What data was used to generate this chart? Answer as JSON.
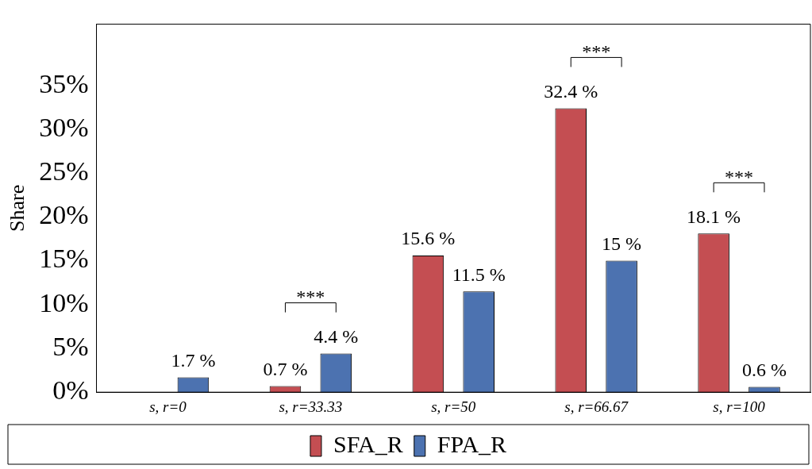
{
  "chart_data": {
    "type": "bar",
    "ylabel": "Share",
    "categories": [
      "s, r=0",
      "s, r=33.33",
      "s, r=50",
      "s, r=66.67",
      "s, r=100"
    ],
    "series": [
      {
        "name": "SFA_R",
        "color": "#c44e52",
        "values": [
          null,
          0.7,
          15.6,
          32.4,
          18.1
        ],
        "value_labels": [
          null,
          "0.7 %",
          "15.6 %",
          "32.4 %",
          "18.1 %"
        ]
      },
      {
        "name": "FPA_R",
        "color": "#4c72b0",
        "values": [
          1.7,
          4.4,
          11.5,
          15,
          0.6
        ],
        "value_labels": [
          "1.7 %",
          "4.4 %",
          "11.5 %",
          "15 %",
          "0.6 %"
        ]
      }
    ],
    "ylim": [
      0,
      42
    ],
    "yticks": [
      {
        "value": 0,
        "label": "0%"
      },
      {
        "value": 5,
        "label": "5%"
      },
      {
        "value": 10,
        "label": "10%"
      },
      {
        "value": 15,
        "label": "15%"
      },
      {
        "value": 20,
        "label": "20%"
      },
      {
        "value": 25,
        "label": "25%"
      },
      {
        "value": 30,
        "label": "30%"
      },
      {
        "value": 35,
        "label": "35%"
      }
    ],
    "annotations": [
      "***",
      "***",
      "***"
    ],
    "grid": false,
    "legend": "bottom"
  }
}
